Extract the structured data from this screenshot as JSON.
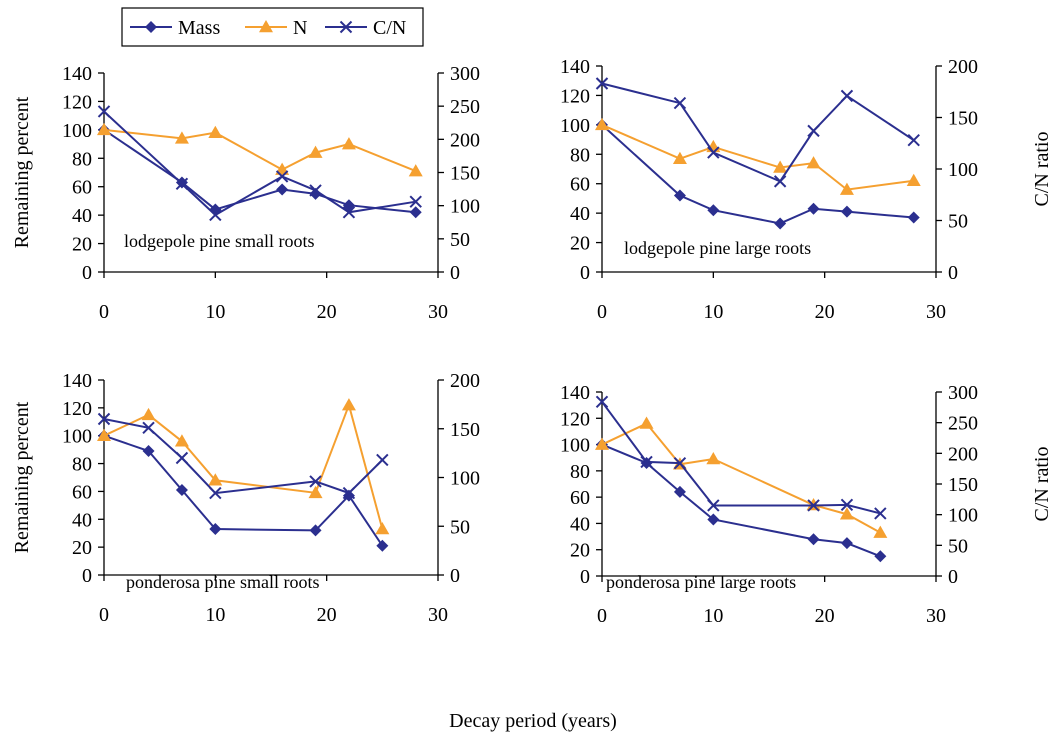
{
  "colors": {
    "mass": "#2b2f8f",
    "n": "#f5a030",
    "cn": "#2b2f8f",
    "axis": "#000000"
  },
  "legend": {
    "entries": [
      {
        "key": "mass",
        "label": "Mass",
        "marker": "diamond"
      },
      {
        "key": "n",
        "label": "N",
        "marker": "triangle"
      },
      {
        "key": "cn",
        "label": "C/N",
        "marker": "x"
      }
    ],
    "placement": "top-left"
  },
  "common_xlabel": "Decay period (years)",
  "chart_data": [
    {
      "type": "line",
      "annotation": "lodgepole pine small roots",
      "ylabel": "Remaining percent",
      "y2label": "",
      "xlim": [
        0,
        30
      ],
      "xticks": [
        0,
        10,
        20,
        30
      ],
      "ylim": [
        0,
        140
      ],
      "yticks": [
        0,
        20,
        40,
        60,
        80,
        100,
        120,
        140
      ],
      "y2lim": [
        0,
        300
      ],
      "y2ticks": [
        0,
        50,
        100,
        150,
        200,
        250,
        300
      ],
      "series": [
        {
          "key": "mass",
          "axis": "left",
          "x": [
            0,
            7,
            10,
            16,
            19,
            22,
            28
          ],
          "y": [
            100,
            63,
            44,
            58,
            55,
            47,
            42
          ]
        },
        {
          "key": "n",
          "axis": "left",
          "x": [
            0,
            7,
            10,
            16,
            19,
            22,
            28
          ],
          "y": [
            100,
            94,
            98,
            72,
            84,
            90,
            71
          ]
        },
        {
          "key": "cn",
          "axis": "right",
          "x": [
            0,
            7,
            10,
            16,
            19,
            22,
            28
          ],
          "y": [
            242,
            133,
            86,
            144,
            123,
            90,
            106
          ]
        }
      ]
    },
    {
      "type": "line",
      "annotation": "lodgepole pine large roots",
      "ylabel": "",
      "y2label": "C/N ratio",
      "xlim": [
        0,
        30
      ],
      "xticks": [
        0,
        10,
        20,
        30
      ],
      "ylim": [
        0,
        140
      ],
      "yticks": [
        0,
        20,
        40,
        60,
        80,
        100,
        120,
        140
      ],
      "y2lim": [
        0,
        200
      ],
      "y2ticks": [
        0,
        50,
        100,
        150,
        200
      ],
      "series": [
        {
          "key": "mass",
          "axis": "left",
          "x": [
            0,
            7,
            10,
            16,
            19,
            22,
            28
          ],
          "y": [
            100,
            52,
            42,
            33,
            43,
            41,
            37
          ]
        },
        {
          "key": "n",
          "axis": "left",
          "x": [
            0,
            7,
            10,
            16,
            19,
            22,
            28
          ],
          "y": [
            100,
            77,
            85,
            71,
            74,
            56,
            62
          ]
        },
        {
          "key": "cn",
          "axis": "right",
          "x": [
            0,
            7,
            10,
            16,
            19,
            22,
            28
          ],
          "y": [
            183,
            164,
            116,
            88,
            137,
            171,
            128
          ]
        }
      ]
    },
    {
      "type": "line",
      "annotation": "ponderosa pine small roots",
      "ylabel": "Remaining percent",
      "y2label": "",
      "xlim": [
        0,
        30
      ],
      "xticks": [
        0,
        10,
        20,
        30
      ],
      "ylim": [
        0,
        140
      ],
      "yticks": [
        0,
        20,
        40,
        60,
        80,
        100,
        120,
        140
      ],
      "y2lim": [
        0,
        200
      ],
      "y2ticks": [
        0,
        50,
        100,
        150,
        200
      ],
      "series": [
        {
          "key": "mass",
          "axis": "left",
          "x": [
            0,
            4,
            7,
            10,
            19,
            22,
            25
          ],
          "y": [
            100,
            89,
            61,
            33,
            32,
            57,
            21
          ]
        },
        {
          "key": "n",
          "axis": "left",
          "x": [
            0,
            4,
            7,
            10,
            19,
            22,
            25
          ],
          "y": [
            100,
            115,
            96,
            68,
            59,
            122,
            33
          ]
        },
        {
          "key": "cn",
          "axis": "right",
          "x": [
            0,
            4,
            7,
            10,
            19,
            22,
            25
          ],
          "y": [
            160,
            151,
            120,
            84,
            96,
            84,
            118
          ]
        }
      ]
    },
    {
      "type": "line",
      "annotation": "ponderosa pine large roots",
      "ylabel": "",
      "y2label": "C/N ratio",
      "xlim": [
        0,
        30
      ],
      "xticks": [
        0,
        10,
        20,
        30
      ],
      "ylim": [
        0,
        140
      ],
      "yticks": [
        0,
        20,
        40,
        60,
        80,
        100,
        120,
        140
      ],
      "y2lim": [
        0,
        300
      ],
      "y2ticks": [
        0,
        50,
        100,
        150,
        200,
        250,
        300
      ],
      "series": [
        {
          "key": "mass",
          "axis": "left",
          "x": [
            0,
            4,
            7,
            10,
            19,
            22,
            25
          ],
          "y": [
            100,
            86,
            64,
            43,
            28,
            25,
            15
          ]
        },
        {
          "key": "n",
          "axis": "left",
          "x": [
            0,
            4,
            7,
            10,
            19,
            22,
            25
          ],
          "y": [
            100,
            116,
            85,
            89,
            54,
            47,
            33
          ]
        },
        {
          "key": "cn",
          "axis": "right",
          "x": [
            0,
            4,
            7,
            10,
            19,
            22,
            25
          ],
          "y": [
            284,
            186,
            184,
            115,
            115,
            116,
            102
          ]
        }
      ]
    }
  ]
}
